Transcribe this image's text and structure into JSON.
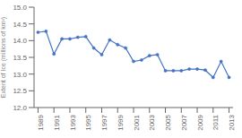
{
  "chart_data": {
    "type": "line",
    "x": [
      1989,
      1990,
      1991,
      1992,
      1993,
      1994,
      1995,
      1996,
      1997,
      1998,
      1999,
      2000,
      2001,
      2002,
      2003,
      2004,
      2005,
      2006,
      2007,
      2008,
      2009,
      2010,
      2011,
      2012,
      2013
    ],
    "values": [
      14.25,
      14.28,
      13.6,
      14.05,
      14.05,
      14.1,
      14.12,
      13.78,
      13.58,
      14.02,
      13.88,
      13.78,
      13.38,
      13.42,
      13.55,
      13.58,
      13.1,
      13.1,
      13.1,
      13.15,
      13.15,
      13.12,
      12.9,
      13.38,
      12.9
    ],
    "color": "#4472C4",
    "marker": "circle",
    "ylabel": "Extent of Ice (millions of km²)",
    "xlim": [
      1988.5,
      2013.5
    ],
    "xticks": [
      1989,
      1991,
      1993,
      1995,
      1997,
      1999,
      2001,
      2003,
      2005,
      2007,
      2009,
      2011,
      2013
    ],
    "ylim": [
      12.0,
      15.0
    ],
    "yticks": [
      {
        "value": 12.0,
        "label": "12.0"
      },
      {
        "value": 12.5,
        "label": "12.5"
      },
      {
        "value": 13.0,
        "label": "13.0"
      },
      {
        "value": 13.5,
        "label": "13.5"
      },
      {
        "value": 14.0,
        "label": "14.0"
      },
      {
        "value": 14.5,
        "label": "14.5"
      },
      {
        "value": 15.0,
        "label": "15.0"
      }
    ]
  }
}
